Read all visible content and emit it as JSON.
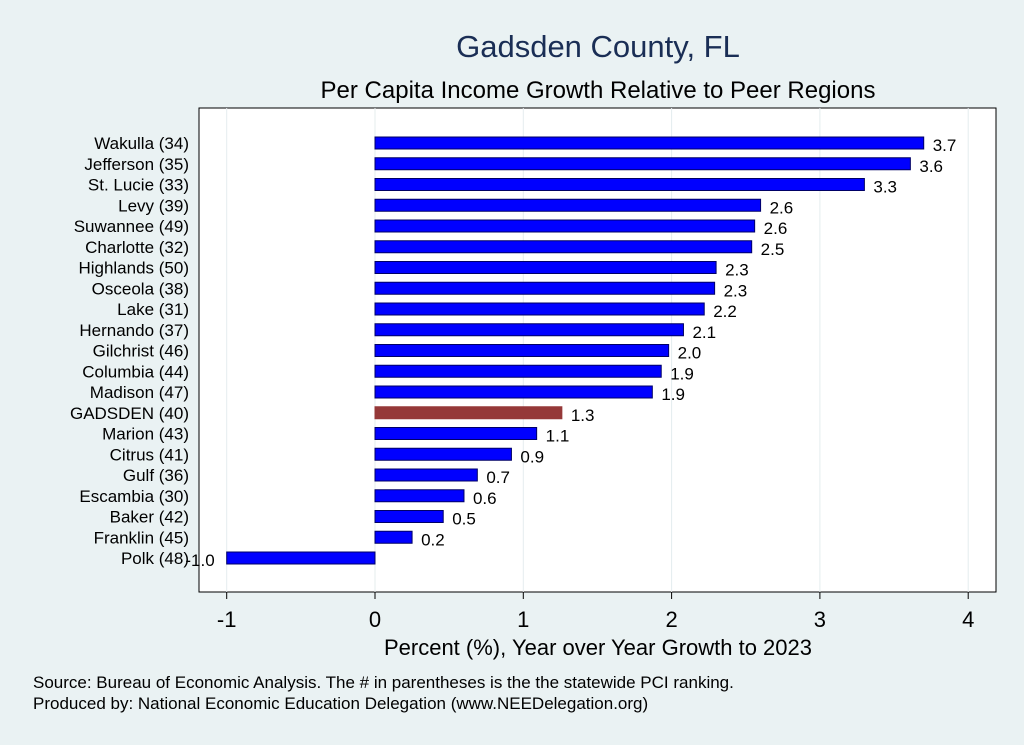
{
  "chart_data": {
    "type": "bar",
    "orientation": "horizontal",
    "title": "Gadsden County, FL",
    "subtitle": "Per Capita Income Growth Relative to Peer Regions",
    "xlabel": "Percent (%), Year over Year Growth to 2023",
    "ylabel": "",
    "xlim": [
      -1.15,
      4.2
    ],
    "xticks": [
      -1,
      0,
      1,
      2,
      3,
      4
    ],
    "grid": true,
    "categories": [
      "Wakulla (34)",
      "Jefferson (35)",
      "St. Lucie (33)",
      "Levy (39)",
      "Suwannee (49)",
      "Charlotte (32)",
      "Highlands (50)",
      "Osceola (38)",
      "Lake (31)",
      "Hernando (37)",
      "Gilchrist (46)",
      "Columbia (44)",
      "Madison (47)",
      "GADSDEN (40)",
      "Marion (43)",
      "Citrus (41)",
      "Gulf (36)",
      "Escambia (30)",
      "Baker (42)",
      "Franklin (45)",
      "Polk (48)"
    ],
    "values": [
      3.7,
      3.61,
      3.3,
      2.6,
      2.56,
      2.54,
      2.3,
      2.29,
      2.22,
      2.08,
      1.98,
      1.93,
      1.87,
      1.26,
      1.09,
      0.92,
      0.69,
      0.6,
      0.46,
      0.25,
      -1.0
    ],
    "value_labels": [
      "3.7",
      "3.6",
      "3.3",
      "2.6",
      "2.6",
      "2.5",
      "2.3",
      "2.3",
      "2.2",
      "2.1",
      "2.0",
      "1.9",
      "1.9",
      "1.3",
      "1.1",
      "0.9",
      "0.7",
      "0.6",
      "0.5",
      "0.2",
      "-1.0"
    ],
    "highlight_category": "GADSDEN (40)",
    "colors": {
      "bar": "#0000ff",
      "highlight": "#953838",
      "bar_outline": "#000066",
      "title": "#1a2e55",
      "background": "#eaf2f3",
      "plot_background": "#ffffff"
    }
  },
  "footer": {
    "line1": "Source: Bureau of Economic Analysis. The # in parentheses is the the statewide PCI ranking.",
    "line2": "Produced by: National Economic Education Delegation (www.NEEDelegation.org)"
  }
}
